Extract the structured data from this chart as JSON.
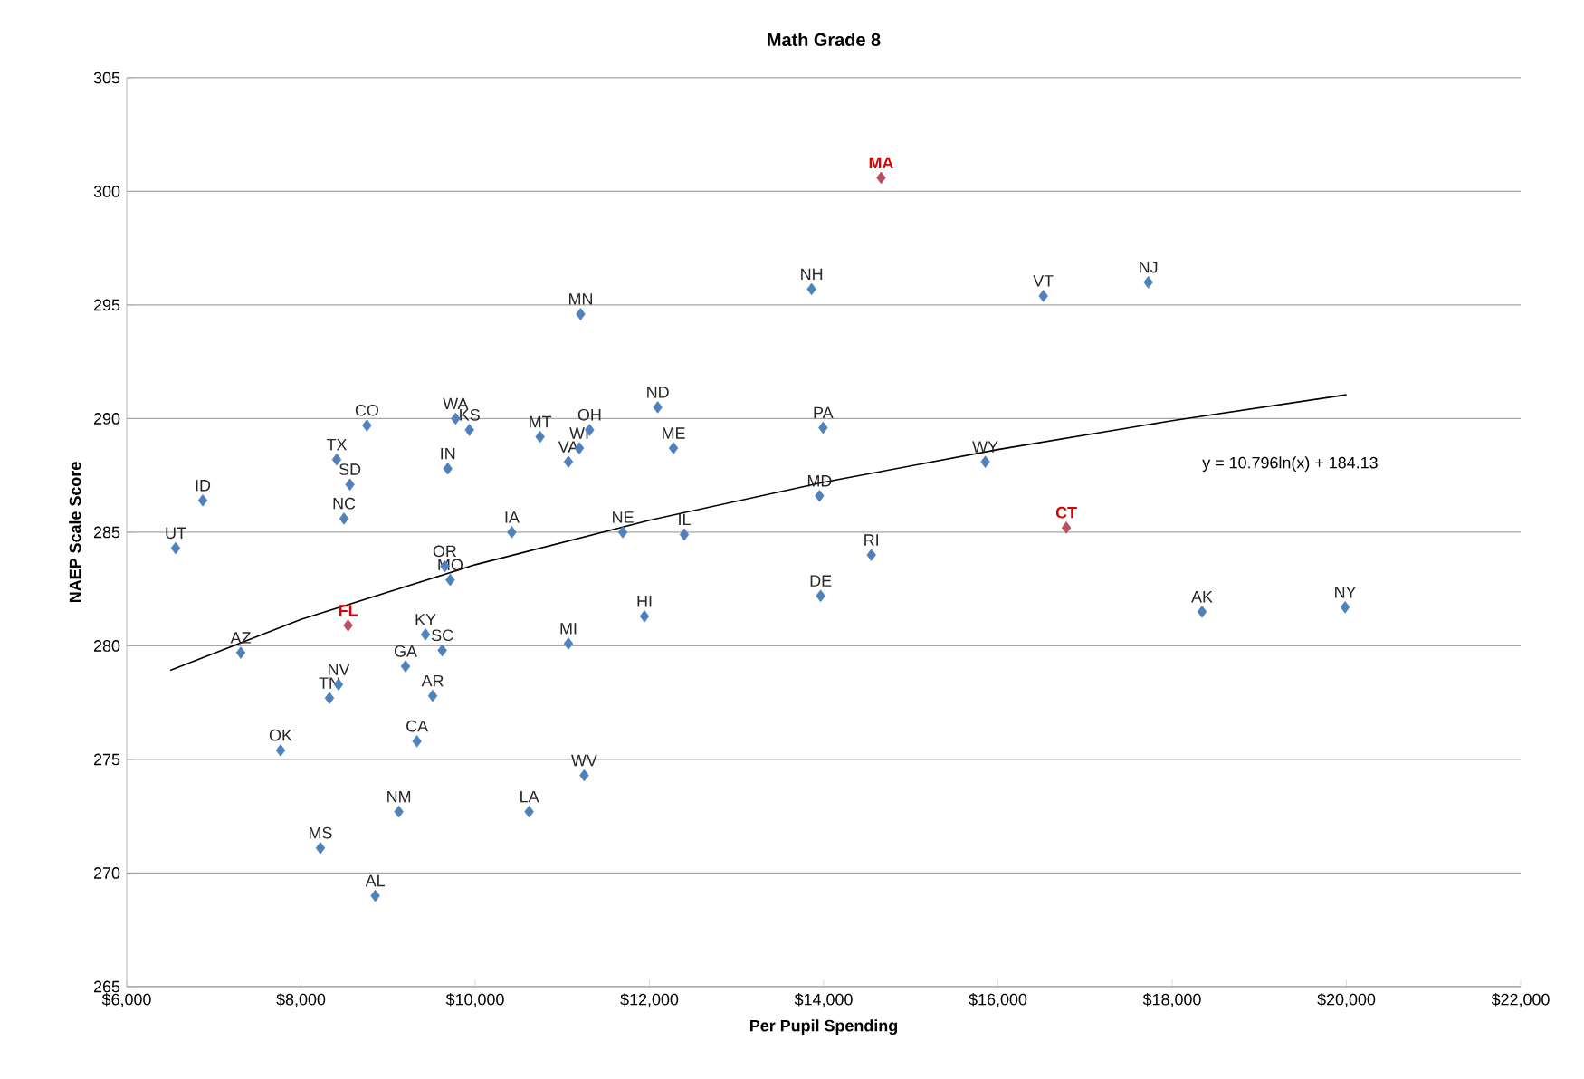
{
  "chart_data": {
    "type": "scatter",
    "title": "Math Grade 8",
    "xlabel": "Per Pupil Spending",
    "ylabel": "NAEP Scale Score",
    "xlim": [
      6000,
      22000
    ],
    "ylim": [
      265,
      305
    ],
    "xticks": [
      {
        "value": 6000,
        "label": "$6,000"
      },
      {
        "value": 8000,
        "label": "$8,000"
      },
      {
        "value": 10000,
        "label": "$10,000"
      },
      {
        "value": 12000,
        "label": "$12,000"
      },
      {
        "value": 14000,
        "label": "$14,000"
      },
      {
        "value": 16000,
        "label": "$16,000"
      },
      {
        "value": 18000,
        "label": "$18,000"
      },
      {
        "value": 20000,
        "label": "$20,000"
      },
      {
        "value": 22000,
        "label": "$22,000"
      }
    ],
    "yticks": [
      265,
      270,
      275,
      280,
      285,
      290,
      295,
      300,
      305
    ],
    "grid": "y",
    "marker": "diamond",
    "series": [
      {
        "color": "#4f81bd",
        "x": [
          6561,
          6873,
          7309,
          7766,
          8223,
          8431,
          8327,
          8410,
          8757,
          8562,
          8494,
          9685,
          9775,
          9934,
          9651,
          9713,
          9429,
          9622,
          9200,
          9512,
          9331,
          9123,
          8853,
          10619,
          11251,
          10420,
          10744,
          11070,
          11195,
          11313,
          11694,
          11070,
          11210,
          12095,
          12276,
          12400,
          11943,
          13993,
          13952,
          13965,
          14547,
          13861,
          16521,
          17726,
          15855,
          18343,
          19985
        ],
        "values": [
          284.3,
          286.4,
          279.7,
          275.4,
          271.1,
          278.3,
          277.7,
          288.2,
          289.7,
          287.1,
          285.6,
          287.8,
          290.0,
          289.5,
          283.5,
          282.9,
          280.5,
          279.8,
          279.1,
          277.8,
          275.8,
          272.7,
          269.0,
          272.7,
          274.3,
          285.0,
          289.2,
          288.1,
          288.7,
          289.5,
          285.0,
          280.1,
          294.6,
          290.5,
          288.7,
          284.9,
          281.3,
          289.6,
          286.6,
          282.2,
          284.0,
          295.7,
          295.4,
          296.0,
          288.1,
          281.5,
          281.7
        ]
      },
      {
        "color": "#b85060",
        "x": [
          14659,
          8541,
          16785
        ],
        "values": [
          300.6,
          280.9,
          285.2
        ]
      },
      {
        "type": "line",
        "color": "#000000",
        "marker": "none",
        "x": [
          6500,
          8000,
          10000,
          12000,
          14000,
          16000,
          18000,
          20000
        ],
        "values": [
          278.92,
          281.16,
          283.57,
          285.53,
          287.2,
          288.64,
          289.91,
          291.05
        ]
      }
    ],
    "annotations": [
      {
        "text": "UT",
        "x": 6561,
        "y": 284.3
      },
      {
        "text": "ID",
        "x": 6873,
        "y": 286.4
      },
      {
        "text": "AZ",
        "x": 7309,
        "y": 279.7
      },
      {
        "text": "OK",
        "x": 7766,
        "y": 275.4
      },
      {
        "text": "MS",
        "x": 8223,
        "y": 271.1
      },
      {
        "text": "NV",
        "x": 8431,
        "y": 278.3
      },
      {
        "text": "TN",
        "x": 8327,
        "y": 277.7
      },
      {
        "text": "TX",
        "x": 8410,
        "y": 288.2
      },
      {
        "text": "CO",
        "x": 8757,
        "y": 289.7
      },
      {
        "text": "SD",
        "x": 8562,
        "y": 287.1
      },
      {
        "text": "NC",
        "x": 8494,
        "y": 285.6
      },
      {
        "text": "IN",
        "x": 9685,
        "y": 287.8
      },
      {
        "text": "WA",
        "x": 9775,
        "y": 290.0
      },
      {
        "text": "KS",
        "x": 9934,
        "y": 289.5
      },
      {
        "text": "OR",
        "x": 9651,
        "y": 283.5
      },
      {
        "text": "MO",
        "x": 9713,
        "y": 282.9
      },
      {
        "text": "KY",
        "x": 9429,
        "y": 280.5
      },
      {
        "text": "SC",
        "x": 9622,
        "y": 279.8
      },
      {
        "text": "GA",
        "x": 9200,
        "y": 279.1
      },
      {
        "text": "AR",
        "x": 9512,
        "y": 277.8
      },
      {
        "text": "CA",
        "x": 9331,
        "y": 275.8
      },
      {
        "text": "NM",
        "x": 9123,
        "y": 272.7
      },
      {
        "text": "AL",
        "x": 8853,
        "y": 269.0
      },
      {
        "text": "LA",
        "x": 10619,
        "y": 272.7
      },
      {
        "text": "WV",
        "x": 11251,
        "y": 274.3
      },
      {
        "text": "IA",
        "x": 10420,
        "y": 285.0
      },
      {
        "text": "MT",
        "x": 10744,
        "y": 289.2
      },
      {
        "text": "VA",
        "x": 11070,
        "y": 288.1
      },
      {
        "text": "WI",
        "x": 11195,
        "y": 288.7
      },
      {
        "text": "OH",
        "x": 11313,
        "y": 289.5
      },
      {
        "text": "NE",
        "x": 11694,
        "y": 285.0
      },
      {
        "text": "MI",
        "x": 11070,
        "y": 280.1
      },
      {
        "text": "MN",
        "x": 11210,
        "y": 294.6
      },
      {
        "text": "ND",
        "x": 12095,
        "y": 290.5
      },
      {
        "text": "ME",
        "x": 12276,
        "y": 288.7
      },
      {
        "text": "IL",
        "x": 12400,
        "y": 284.9
      },
      {
        "text": "HI",
        "x": 11943,
        "y": 281.3
      },
      {
        "text": "PA",
        "x": 13993,
        "y": 289.6
      },
      {
        "text": "MD",
        "x": 13952,
        "y": 286.6
      },
      {
        "text": "DE",
        "x": 13965,
        "y": 282.2
      },
      {
        "text": "RI",
        "x": 14547,
        "y": 284.0
      },
      {
        "text": "NH",
        "x": 13861,
        "y": 295.7
      },
      {
        "text": "VT",
        "x": 16521,
        "y": 295.4
      },
      {
        "text": "NJ",
        "x": 17726,
        "y": 296.0
      },
      {
        "text": "WY",
        "x": 15855,
        "y": 288.1
      },
      {
        "text": "AK",
        "x": 18343,
        "y": 281.5
      },
      {
        "text": "NY",
        "x": 19985,
        "y": 281.7
      },
      {
        "text": "MA",
        "x": 14659,
        "y": 300.6
      },
      {
        "text": "FL",
        "x": 8541,
        "y": 280.9
      },
      {
        "text": "CT",
        "x": 16785,
        "y": 285.2
      },
      "y = 10.796ln(x) + 184.13"
    ]
  }
}
